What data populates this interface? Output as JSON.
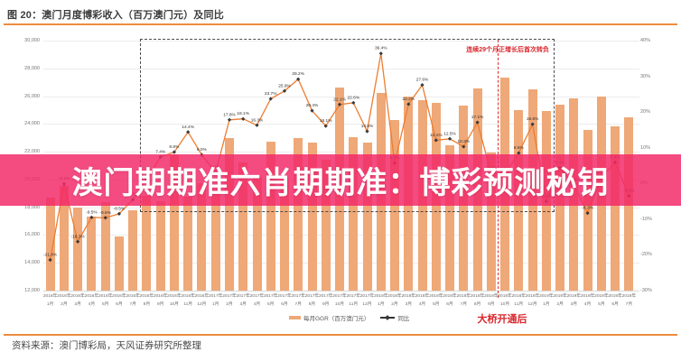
{
  "figure": {
    "title": "图 20：澳门月度博彩收入（百万澳门元）及同比",
    "source": "资料来源：澳门博彩局，天风证券研究所整理"
  },
  "overlay": {
    "banner_text": "澳门期期准六肖期期准：博彩预测秘钥",
    "banner_color": "#F0457D"
  },
  "annotations": {
    "box_note": "连续29个月正增长后首次转负",
    "bridge_note": "大桥开通后"
  },
  "legend": {
    "bars": "每月GGR（百万澳门元）",
    "line": "同比"
  },
  "chart_data": {
    "type": "bar",
    "title": "澳门月度博彩收入（百万澳门元）及同比",
    "categories": [
      [
        "2016年",
        "1月"
      ],
      [
        "2016年",
        "2月"
      ],
      [
        "2016年",
        "3月"
      ],
      [
        "2016年",
        "4月"
      ],
      [
        "2016年",
        "5月"
      ],
      [
        "2016年",
        "6月"
      ],
      [
        "2016年",
        "7月"
      ],
      [
        "2016年",
        "8月"
      ],
      [
        "2016年",
        "9月"
      ],
      [
        "2016年",
        "10月"
      ],
      [
        "2016年",
        "11月"
      ],
      [
        "2016年",
        "12月"
      ],
      [
        "2017年",
        "1月"
      ],
      [
        "2017年",
        "2月"
      ],
      [
        "2017年",
        "3月"
      ],
      [
        "2017年",
        "4月"
      ],
      [
        "2017年",
        "5月"
      ],
      [
        "2017年",
        "6月"
      ],
      [
        "2017年",
        "7月"
      ],
      [
        "2017年",
        "8月"
      ],
      [
        "2017年",
        "9月"
      ],
      [
        "2017年",
        "10月"
      ],
      [
        "2017年",
        "11月"
      ],
      [
        "2017年",
        "12月"
      ],
      [
        "2018年",
        "1月"
      ],
      [
        "2018年",
        "2月"
      ],
      [
        "2018年",
        "3月"
      ],
      [
        "2018年",
        "4月"
      ],
      [
        "2018年",
        "5月"
      ],
      [
        "2018年",
        "6月"
      ],
      [
        "2018年",
        "7月"
      ],
      [
        "2018年",
        "8月"
      ],
      [
        "2018年",
        "9月"
      ],
      [
        "2018年",
        "10月"
      ],
      [
        "2018年",
        "11月"
      ],
      [
        "2018年",
        "12月"
      ],
      [
        "2019年",
        "1月"
      ],
      [
        "2019年",
        "2月"
      ],
      [
        "2019年",
        "3月"
      ],
      [
        "2019年",
        "4月"
      ],
      [
        "2019年",
        "5月"
      ],
      [
        "2019年",
        "6月"
      ],
      [
        "2019年",
        "7月"
      ]
    ],
    "series": [
      {
        "name": "每月GGR（百万澳门元）",
        "type": "bar",
        "axis": "left",
        "values": [
          18674,
          19519,
          17980,
          17337,
          18389,
          15884,
          17773,
          18837,
          18435,
          21807,
          18786,
          19743,
          19254,
          22989,
          21232,
          20164,
          22744,
          19992,
          22968,
          22676,
          21408,
          26631,
          23038,
          22637,
          26265,
          24312,
          25952,
          25727,
          25488,
          22490,
          25327,
          26560,
          21952,
          27328,
          24995,
          26468,
          24942,
          25370,
          25840,
          23588,
          25952,
          23812,
          24453
        ]
      },
      {
        "name": "同比",
        "type": "line",
        "axis": "right",
        "values": [
          -21.4,
          -0.1,
          -16.3,
          -9.5,
          -9.6,
          -8.5,
          -4.5,
          1.1,
          7.4,
          8.8,
          14.4,
          8.0,
          3.1,
          17.8,
          18.1,
          16.3,
          23.7,
          25.9,
          29.2,
          20.4,
          16.1,
          22.1,
          22.6,
          14.6,
          36.4,
          5.7,
          22.2,
          27.6,
          12.1,
          12.5,
          10.3,
          17.1,
          2.8,
          2.6,
          8.5,
          16.6,
          -5.0,
          4.4,
          -0.4,
          -8.3,
          1.8,
          5.9,
          -3.5
        ]
      }
    ],
    "left_axis": {
      "min": 12000,
      "max": 30000,
      "step": 2000,
      "ticks": [
        "30,000",
        "28,000",
        "26,000",
        "24,000",
        "22,000",
        "20,000",
        "18,000",
        "16,000",
        "14,000",
        "12,000"
      ]
    },
    "right_axis": {
      "min": -30,
      "max": 40,
      "step": 10,
      "ticks": [
        "40%",
        "30%",
        "20%",
        "10%",
        "0%",
        "-10%",
        "-20%",
        "-30%"
      ]
    },
    "grid": true,
    "legend_position": "bottom",
    "colors": {
      "bar": "#EFA877",
      "line": "#ED7D31",
      "marker": "#3A3A3A",
      "accent_rule": "#ED8C3E",
      "annotation_red": "#D9262C"
    }
  }
}
